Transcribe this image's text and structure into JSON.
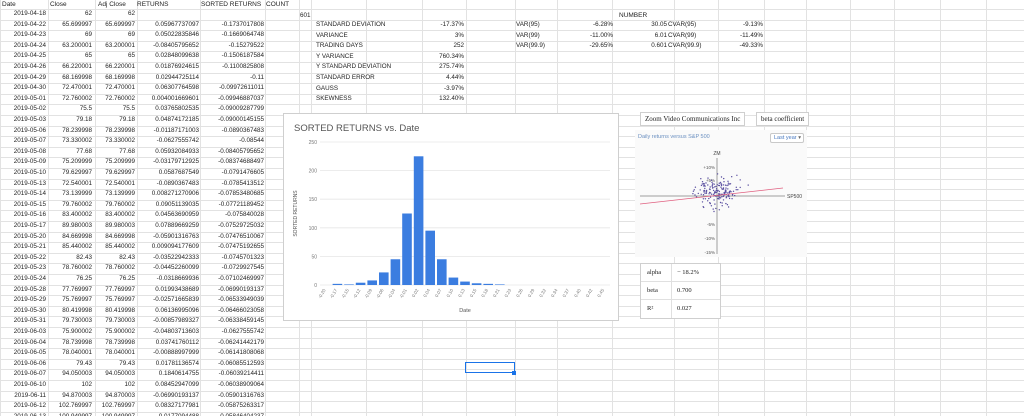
{
  "headers": {
    "date": "Date",
    "close": "Close",
    "adj_close": "Adj Close",
    "returns": "RETURNS",
    "sorted": "SORTED RETURNS",
    "count": "COUNT",
    "number": "NUMBER"
  },
  "count_value": "601",
  "rows": [
    [
      "2019-04-18",
      "62",
      "62",
      "",
      ""
    ],
    [
      "2019-04-22",
      "65.699997",
      "65.699997",
      "0.05967737097",
      "-0.1737017808"
    ],
    [
      "2019-04-23",
      "69",
      "69",
      "0.05022835846",
      "-0.1669064748"
    ],
    [
      "2019-04-24",
      "63.200001",
      "63.200001",
      "-0.08405795652",
      "-0.15279522"
    ],
    [
      "2019-04-25",
      "65",
      "65",
      "0.02848099638",
      "-0.1506187584"
    ],
    [
      "2019-04-26",
      "66.220001",
      "66.220001",
      "0.01876924615",
      "-0.1100825808"
    ],
    [
      "2019-04-29",
      "68.169998",
      "68.169998",
      "0.02944725114",
      "-0.11"
    ],
    [
      "2019-04-30",
      "72.470001",
      "72.470001",
      "0.06307764598",
      "-0.09972611011"
    ],
    [
      "2019-05-01",
      "72.760002",
      "72.760002",
      "0.004001669601",
      "-0.09946887037"
    ],
    [
      "2019-05-02",
      "75.5",
      "75.5",
      "0.03765802535",
      "-0.09009287799"
    ],
    [
      "2019-05-03",
      "79.18",
      "79.18",
      "0.04874172185",
      "-0.09000145155"
    ],
    [
      "2019-05-06",
      "78.239998",
      "78.239998",
      "-0.01187171003",
      "-0.0890367483"
    ],
    [
      "2019-05-07",
      "73.330002",
      "73.330002",
      "-0.0627555742",
      "-0.08544"
    ],
    [
      "2019-05-08",
      "77.68",
      "77.68",
      "0.05932084933",
      "-0.08405795652"
    ],
    [
      "2019-05-09",
      "75.209999",
      "75.209999",
      "-0.03179712925",
      "-0.08374688497"
    ],
    [
      "2019-05-10",
      "79.629997",
      "79.629997",
      "0.0587687549",
      "-0.0791476605"
    ],
    [
      "2019-05-13",
      "72.540001",
      "72.540001",
      "-0.0890367483",
      "-0.0785413512"
    ],
    [
      "2019-05-14",
      "73.139999",
      "73.139999",
      "0.008271270906",
      "-0.07853480685"
    ],
    [
      "2019-05-15",
      "79.760002",
      "79.760002",
      "0.09051139035",
      "-0.07721189452"
    ],
    [
      "2019-05-16",
      "83.400002",
      "83.400002",
      "0.04563690959",
      "-0.075840028"
    ],
    [
      "2019-05-17",
      "89.980003",
      "89.980003",
      "0.07889669259",
      "-0.07529725032"
    ],
    [
      "2019-05-20",
      "84.669998",
      "84.669998",
      "-0.05901316763",
      "-0.07476510067"
    ],
    [
      "2019-05-21",
      "85.440002",
      "85.440002",
      "0.009094177609",
      "-0.07475192655"
    ],
    [
      "2019-05-22",
      "82.43",
      "82.43",
      "-0.03522942333",
      "-0.0745701323"
    ],
    [
      "2019-05-23",
      "78.760002",
      "78.760002",
      "-0.04452260099",
      "-0.0729927545"
    ],
    [
      "2019-05-24",
      "76.25",
      "76.25",
      "-0.0318669936",
      "-0.07102469997"
    ],
    [
      "2019-05-28",
      "77.769997",
      "77.769997",
      "0.01993438689",
      "-0.06990193137"
    ],
    [
      "2019-05-29",
      "75.769997",
      "75.769997",
      "-0.02571665839",
      "-0.06533949039"
    ],
    [
      "2019-05-30",
      "80.419998",
      "80.419998",
      "0.06136995096",
      "-0.06466023058"
    ],
    [
      "2019-05-31",
      "79.730003",
      "79.730003",
      "-0.00857989327",
      "-0.06338459145"
    ],
    [
      "2019-06-03",
      "75.900002",
      "75.900002",
      "-0.04803713603",
      "-0.0627555742"
    ],
    [
      "2019-06-04",
      "78.739998",
      "78.739998",
      "0.03741760112",
      "-0.06241442179"
    ],
    [
      "2019-06-05",
      "78.040001",
      "78.040001",
      "-0.00888997999",
      "-0.06141808068"
    ],
    [
      "2019-06-06",
      "79.43",
      "79.43",
      "0.01781136574",
      "-0.06085512593"
    ],
    [
      "2019-06-07",
      "94.050003",
      "94.050003",
      "0.1840614755",
      "-0.06039214411"
    ],
    [
      "2019-06-10",
      "102",
      "102",
      "0.08452947099",
      "-0.06038909064"
    ],
    [
      "2019-06-11",
      "94.870003",
      "94.870003",
      "-0.06990193137",
      "-0.05901316763"
    ],
    [
      "2019-06-12",
      "102.769997",
      "102.769997",
      "0.08327177981",
      "-0.05875263317"
    ],
    [
      "2019-06-13",
      "100.949997",
      "100.949997",
      "-0.0177094488",
      "-0.05846404237"
    ]
  ],
  "stats": [
    {
      "label": "STANDARD DEVIATION",
      "value": "-17.37%"
    },
    {
      "label": "VARIANCE",
      "value": "3%"
    },
    {
      "label": "TRADING DAYS",
      "value": "252"
    },
    {
      "label": "Y VARIANCE",
      "value": "760.34%"
    },
    {
      "label": "Y STANDARD DEVIATION",
      "value": "275.74%"
    },
    {
      "label": "STANDARD ERROR",
      "value": "4.44%"
    },
    {
      "label": "GAUSS",
      "value": "-3.97%"
    },
    {
      "label": "SKEWNESS",
      "value": "132.40%"
    }
  ],
  "var": [
    {
      "label": "VAR(95)",
      "value": "-6.28%",
      "number": "30.05",
      "cvar_label": "CVAR(95)",
      "cvar": "-9.13%"
    },
    {
      "label": "VAR(99)",
      "value": "-11.00%",
      "number": "6.01",
      "cvar_label": "CVAR(99)",
      "cvar": "-11.49%"
    },
    {
      "label": "VAR(99.9)",
      "value": "-29.65%",
      "number": "0.601",
      "cvar_label": "CVAR(99.9)",
      "cvar": "-49.33%"
    }
  ],
  "chart_data": {
    "type": "bar",
    "title": "SORTED RETURNS vs. Date",
    "xlabel": "Date",
    "ylabel": "SORTED RETURNS",
    "ylim": [
      0,
      250
    ],
    "yticks": [
      "0",
      "50",
      "100",
      "150",
      "200",
      "250"
    ],
    "categories": [
      "-0.20",
      "-0.17",
      "-0.15",
      "-0.12",
      "-0.09",
      "-0.06",
      "-0.04",
      "-0.01",
      "0.02",
      "0.04",
      "0.07",
      "0.10",
      "0.13",
      "0.15",
      "0.18",
      "0.21",
      "0.23",
      "0.26",
      "0.29",
      "0.32",
      "0.34",
      "0.37",
      "0.40",
      "0.42",
      "0.45"
    ],
    "values": [
      0,
      2,
      1,
      4,
      8,
      22,
      45,
      125,
      225,
      95,
      45,
      13,
      6,
      3,
      2,
      1,
      0,
      0,
      0,
      0,
      0,
      0,
      0,
      0,
      0
    ],
    "color": "#3b7de0",
    "grid": true
  },
  "widget": {
    "tab1": "Zoom Video Communications Inc",
    "tab2": "beta coefficient",
    "title": "Daily returns versus S&P 500",
    "range": "Last year",
    "y_label": "ZM",
    "x_label": "SP500",
    "y_ticks": [
      "+10%",
      "+5%",
      "-5%",
      "-10%",
      "-15%"
    ],
    "stat_rows": [
      {
        "key": "alpha",
        "value": "− 18.2%"
      },
      {
        "key": "beta",
        "value": "0.700"
      },
      {
        "key": "R²",
        "value": "0.027"
      }
    ]
  }
}
